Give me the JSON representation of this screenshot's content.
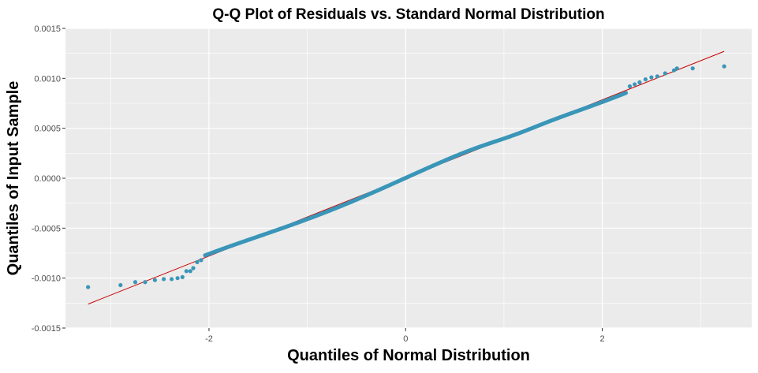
{
  "chart_data": {
    "type": "scatter",
    "title": "Q-Q Plot of Residuals vs. Standard Normal Distribution",
    "xlabel": "Quantiles of Normal Distribution",
    "ylabel": "Quantiles of Input Sample",
    "xlim": [
      -3.46,
      3.52
    ],
    "ylim": [
      -0.0015,
      0.0015
    ],
    "x_ticks": [
      -2,
      0,
      2
    ],
    "x_tick_labels": [
      "-2",
      "0",
      "2"
    ],
    "y_ticks": [
      -0.0015,
      -0.001,
      -0.0005,
      0.0,
      0.0005,
      0.001,
      0.0015
    ],
    "y_tick_labels": [
      "-0.0015",
      "-0.0010",
      "-0.0005",
      "0.0000",
      "0.0005",
      "0.0010",
      "0.0015"
    ],
    "grid": true,
    "colors": {
      "panel_background": "#ebebeb",
      "grid": "#ffffff",
      "points": "#3a96b8",
      "reference_line": "#cc0000"
    },
    "reference_line": {
      "x": [
        -3.23,
        3.24
      ],
      "y": [
        -0.00126,
        0.00127
      ]
    },
    "series": [
      {
        "points": [
          [
            -3.23,
            -0.00109
          ],
          [
            -2.9,
            -0.00107
          ],
          [
            -2.75,
            -0.00104
          ],
          [
            -2.65,
            -0.00104
          ],
          [
            -2.55,
            -0.00102
          ],
          [
            -2.46,
            -0.00101
          ],
          [
            -2.38,
            -0.00101
          ],
          [
            -2.32,
            -0.001
          ],
          [
            -2.27,
            -0.00099
          ],
          [
            -2.23,
            -0.00093
          ],
          [
            -2.19,
            -0.00093
          ],
          [
            -2.16,
            -0.0009
          ],
          [
            -2.12,
            -0.00084
          ],
          [
            -2.08,
            -0.00082
          ],
          [
            2.28,
            0.00092
          ],
          [
            2.33,
            0.00094
          ],
          [
            2.38,
            0.00096
          ],
          [
            2.44,
            0.00099
          ],
          [
            2.5,
            0.00101
          ],
          [
            2.56,
            0.00102
          ],
          [
            2.64,
            0.00105
          ],
          [
            2.73,
            0.00108
          ],
          [
            2.76,
            0.0011
          ],
          [
            2.92,
            0.0011
          ],
          [
            3.24,
            0.00112
          ]
        ]
      }
    ]
  }
}
